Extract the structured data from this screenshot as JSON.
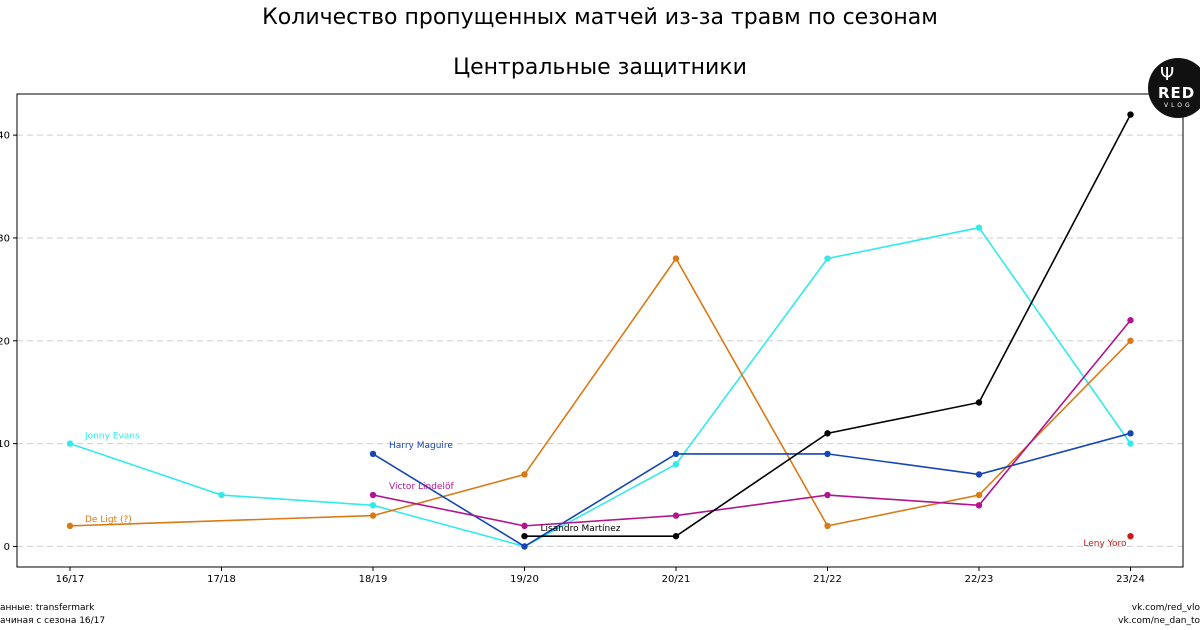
{
  "title": "Количество пропущенных матчей из-за травм по сезонам",
  "subtitle": "Центральные защитники",
  "footer_left": [
    "анные: transfermark",
    "ачиная с сезона 16/17"
  ],
  "footer_right": [
    "vk.com/red_vlo",
    "vk.com/ne_dan_to"
  ],
  "logo": {
    "text": "RED",
    "sub": "VLOG"
  },
  "chart_data": {
    "type": "line",
    "title": "Количество пропущенных матчей из-за травм по сезонам",
    "subtitle": "Центральные защитники",
    "categories": [
      "16/17",
      "17/18",
      "18/19",
      "19/20",
      "20/21",
      "21/22",
      "22/23",
      "23/24"
    ],
    "yticks": [
      0,
      10,
      20,
      30,
      40
    ],
    "ytick_labels": [
      "0",
      "10",
      "20",
      "30",
      "40"
    ],
    "ylim": [
      -2,
      44
    ],
    "grid": "y-dashed",
    "legend": "inline labels",
    "series": [
      {
        "name": "Jonny Evans",
        "color": "#33eaea",
        "values": [
          10,
          5,
          4,
          0,
          8,
          28,
          31,
          10
        ]
      },
      {
        "name": "De Ligt (?)",
        "color": "#d97a16",
        "values": [
          2,
          null,
          3,
          7,
          28,
          2,
          5,
          20
        ]
      },
      {
        "name": "Harry Maguire",
        "color": "#1646b4",
        "values": [
          null,
          null,
          9,
          0,
          9,
          9,
          7,
          11
        ]
      },
      {
        "name": "Victor Lindelöf",
        "color": "#b0158e",
        "values": [
          null,
          null,
          5,
          2,
          3,
          5,
          4,
          22
        ]
      },
      {
        "name": "Lisandro Martínez",
        "color": "#000000",
        "values": [
          null,
          null,
          null,
          1,
          1,
          11,
          14,
          42
        ]
      },
      {
        "name": "Leny Yoro",
        "color": "#cc1a1a",
        "values": [
          null,
          null,
          null,
          null,
          null,
          null,
          null,
          1
        ]
      }
    ]
  }
}
